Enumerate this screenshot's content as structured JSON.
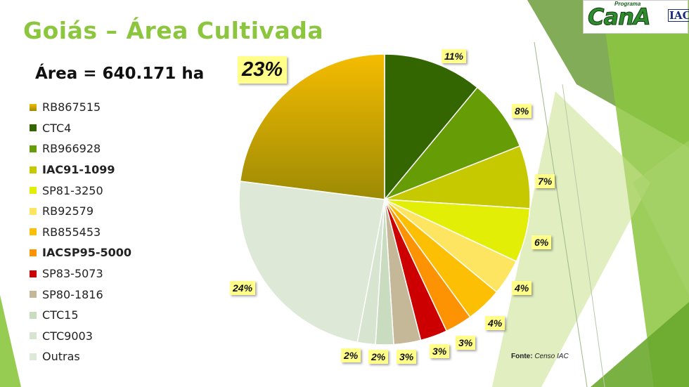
{
  "title": "Goiás – Área Cultivada",
  "area_text": "Área = 640.171 ha",
  "source_label": "Fonte:",
  "source_value": "Censo IAC",
  "logo": {
    "small": "Programa",
    "main": "CanA",
    "iac": "IAC"
  },
  "chart_data": {
    "type": "pie",
    "start_angle_deg": 0,
    "direction": "clockwise",
    "slices": [
      {
        "label": "CTC4",
        "value": 11,
        "value_label": "11%",
        "color": "#336600",
        "bold": false
      },
      {
        "label": "RB966928",
        "value": 8,
        "value_label": "8%",
        "color": "#669c06",
        "bold": false
      },
      {
        "label": "IAC91-1099",
        "value": 7,
        "value_label": "7%",
        "color": "#c6c800",
        "bold": true
      },
      {
        "label": "SP81-3250",
        "value": 6,
        "value_label": "6%",
        "color": "#e3ee06",
        "bold": false
      },
      {
        "label": "RB92579",
        "value": 4,
        "value_label": "4%",
        "color": "#fde562",
        "bold": false
      },
      {
        "label": "RB855453",
        "value": 4,
        "value_label": "4%",
        "color": "#fcbf03",
        "bold": false
      },
      {
        "label": "IACSP95-5000",
        "value": 3,
        "value_label": "3%",
        "color": "#fd9203",
        "bold": true
      },
      {
        "label": "SP83-5073",
        "value": 3,
        "value_label": "3%",
        "color": "#cc0000",
        "bold": false
      },
      {
        "label": "SP80-1816",
        "value": 3,
        "value_label": "3%",
        "color": "#c5b898",
        "bold": false
      },
      {
        "label": "CTC15",
        "value": 2,
        "value_label": "2%",
        "color": "#c9dcc0",
        "bold": false
      },
      {
        "label": "CTC9003",
        "value": 2,
        "value_label": "2%",
        "color": "#d6e4d0",
        "bold": false
      },
      {
        "label": "Outras",
        "value": 24,
        "value_label": "24%",
        "color": "#dde8d6",
        "bold": false
      },
      {
        "label": "RB867515",
        "value": 23,
        "value_label": "23%",
        "color": "#f5bc00",
        "color_dark": "#9c8a05",
        "bold": false,
        "gradient": true
      }
    ],
    "legend_order": [
      "RB867515",
      "CTC4",
      "RB966928",
      "IAC91-1099",
      "SP81-3250",
      "RB92579",
      "RB855453",
      "IACSP95-5000",
      "SP83-5073",
      "SP80-1816",
      "CTC15",
      "CTC9003",
      "Outras"
    ]
  }
}
